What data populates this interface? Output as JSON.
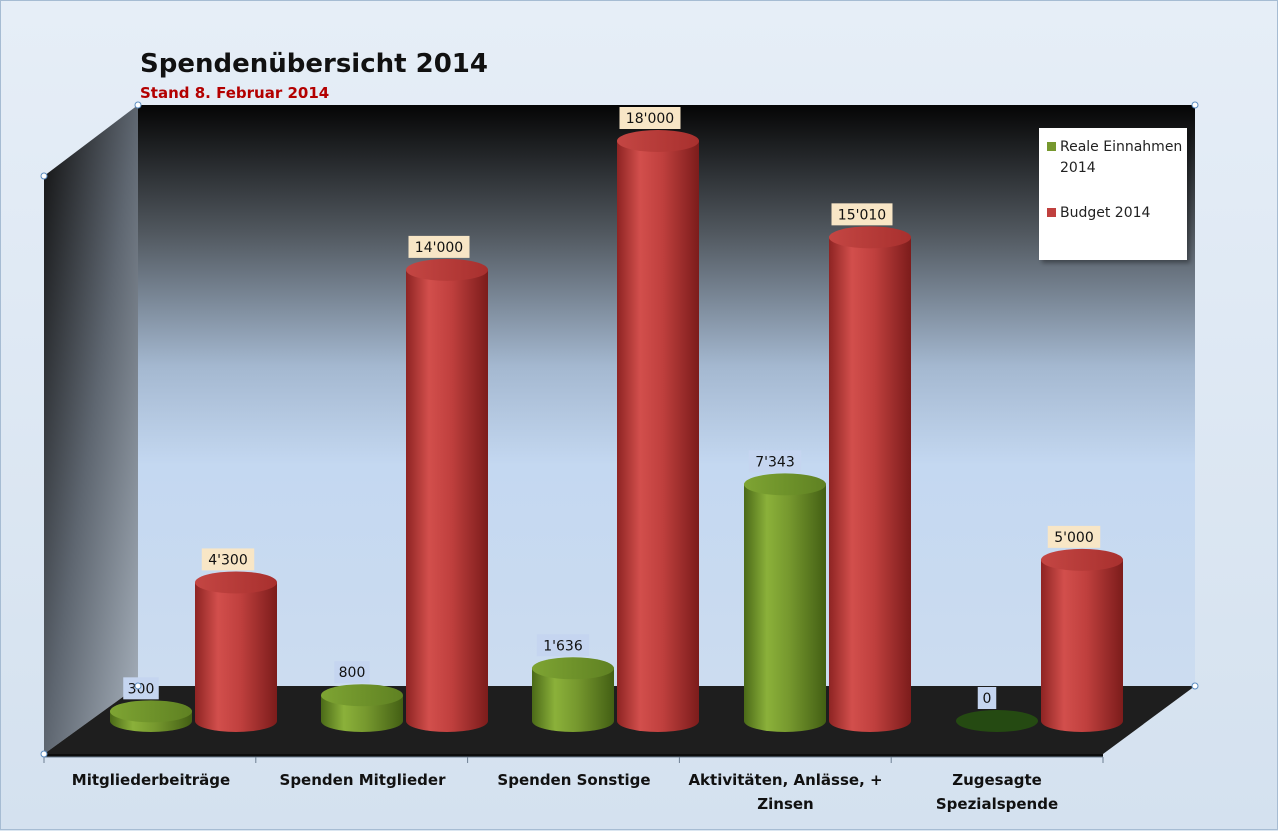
{
  "chart_data": {
    "type": "bar",
    "title": "Spendenübersicht 2014",
    "subtitle": "Stand 8. Februar 2014",
    "categories": [
      [
        "Mitgliederbeiträge"
      ],
      [
        "Spenden Mitglieder"
      ],
      [
        "Spenden Sonstige"
      ],
      [
        "Aktivitäten, Anlässe, +",
        "Zinsen"
      ],
      [
        "Zugesagte",
        "Spezialspende"
      ]
    ],
    "series": [
      {
        "name": "Reale Einnahmen 2014",
        "legend_lines": [
          "Reale Einnahmen",
          "2014"
        ],
        "values": [
          300,
          800,
          1636,
          7343,
          0
        ],
        "labels": [
          "300",
          "800",
          "1'636",
          "7'343",
          "0"
        ],
        "color": "#76982e",
        "label_bg": "#c5d5f0"
      },
      {
        "name": "Budget 2014",
        "legend_lines": [
          "Budget 2014"
        ],
        "values": [
          4300,
          14000,
          18000,
          15010,
          5000
        ],
        "labels": [
          "4'300",
          "14'000",
          "18'000",
          "15'010",
          "5'000"
        ],
        "color": "#c0403e",
        "label_bg": "#f8e6c6"
      }
    ],
    "ylim": [
      0,
      20000
    ],
    "legend_position": "top-right",
    "grid": false
  }
}
